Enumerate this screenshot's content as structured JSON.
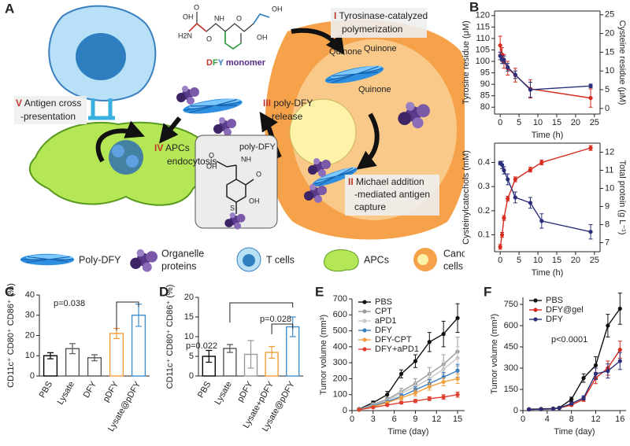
{
  "schematic": {
    "panel": "A",
    "steps": [
      {
        "numeral": "I",
        "lines": [
          "Tyrosinase-catalyzed",
          "polymerization"
        ]
      },
      {
        "numeral": "II",
        "lines": [
          "Michael addition",
          "-mediated antigen",
          "capture"
        ]
      },
      {
        "numeral": "III",
        "lines": [
          "poly-DFY",
          "release"
        ]
      },
      {
        "numeral": "IV",
        "lines": [
          "APCs",
          "endocytosis"
        ]
      },
      {
        "numeral": "V",
        "lines": [
          "Antigen cross",
          "-presentation"
        ]
      }
    ],
    "monomer": [
      "D",
      "F",
      "Y",
      " monomer"
    ],
    "monomer_atoms": [
      "O",
      "OH",
      "H2N",
      "O",
      "NH",
      "O",
      "OH",
      "OH"
    ],
    "quinone": [
      "Quinone",
      "Quinone",
      "Quinone"
    ],
    "structure_label": "poly-DFY",
    "structure_atoms": [
      "O",
      "OH",
      "NH",
      "O",
      "OH",
      "S"
    ],
    "legend": [
      [
        "Poly-DFY"
      ],
      [
        "Organelle",
        "proteins"
      ],
      [
        "T cells"
      ],
      [
        "APCs"
      ],
      [
        "Cancer",
        "cells"
      ]
    ]
  },
  "chart_data": [
    {
      "panel": "B",
      "type": "line",
      "xlabel": "Time (h)",
      "ylabel": "Tyrosine residue (μM)",
      "y2label": "Cysteine residue (μM)",
      "x": [
        0,
        0.5,
        1,
        2,
        4,
        8,
        24
      ],
      "xlim": [
        -1.5,
        26.5
      ],
      "xticks": [
        0,
        5,
        10,
        15,
        20,
        25
      ],
      "ylim": [
        77,
        122
      ],
      "yticks": [
        80,
        85,
        90,
        95,
        100,
        105,
        110,
        115,
        120
      ],
      "y2lim": [
        -1.5,
        26
      ],
      "y2ticks": [
        0,
        5,
        10,
        15,
        20,
        25
      ],
      "series": [
        {
          "color": "#d62b1f",
          "values": [
            107,
            103,
            100,
            97,
            94,
            88,
            84
          ],
          "errors": [
            4,
            3,
            3,
            3,
            3,
            4,
            4
          ]
        },
        {
          "color": "#2b2f7a",
          "axis": "y2",
          "values": [
            14,
            13,
            13,
            11,
            9,
            5,
            6
          ],
          "errors": [
            1,
            1,
            1,
            1,
            1,
            2,
            0.5
          ]
        }
      ]
    },
    {
      "type": "line",
      "xlabel": "Time (h)",
      "ylabel": "Cysteinylcatechols (mM)",
      "y2label": "Total protein (g L⁻¹)",
      "x": [
        0,
        0.5,
        1,
        2,
        4,
        8,
        11,
        24
      ],
      "xlim": [
        -1.5,
        26.5
      ],
      "xticks": [
        0,
        5,
        10,
        15,
        20,
        25
      ],
      "ylim": [
        0.03,
        0.48
      ],
      "yticks": [
        0.1,
        0.2,
        0.3,
        0.4
      ],
      "y2lim": [
        6.5,
        12.5
      ],
      "y2ticks": [
        7,
        8,
        9,
        10,
        11,
        12
      ],
      "series": [
        {
          "color": "#d62b1f",
          "values": [
            0.05,
            0.1,
            0.17,
            0.25,
            0.33,
            0.37,
            0.4,
            0.46
          ],
          "errors": [
            0.01,
            0.01,
            0.01,
            0.01,
            0.01,
            0.01,
            0.01,
            0.01
          ]
        },
        {
          "color": "#2b2f7a",
          "axis": "y2",
          "values": [
            11.4,
            11.3,
            11.0,
            10.5,
            9.5,
            9.2,
            8.2,
            7.6
          ],
          "errors": [
            0.1,
            0.2,
            0.2,
            0.3,
            0.3,
            0.3,
            0.4,
            0.4
          ]
        }
      ]
    },
    {
      "panel": "C",
      "type": "bar",
      "ylabel": "CD11c⁺ CD80⁺ CD86⁺ (%)",
      "categories": [
        "PBS",
        "Lysate",
        "DFY",
        "pDFY",
        "Lysate@pDFY"
      ],
      "values": [
        10,
        13.5,
        9,
        21,
        30
      ],
      "errors": [
        1.5,
        2.5,
        1.5,
        2.5,
        5.5
      ],
      "colors": [
        "#000000",
        "#555555",
        "#555555",
        "#f39c35",
        "#3f8fd0"
      ],
      "ylim": [
        0,
        40
      ],
      "yticks": [
        0,
        10,
        20,
        30,
        40
      ],
      "annotations": [
        "p=0.038"
      ]
    },
    {
      "panel": "D",
      "type": "bar",
      "ylabel": "CD11c⁺ CD80⁺ CD86⁺ (%)",
      "categories": [
        "PBS",
        "Lysate",
        "pDFY",
        "Lysate+pDFY",
        "Lysate@pDFY"
      ],
      "values": [
        5,
        7,
        5.5,
        6,
        12.5
      ],
      "errors": [
        1.5,
        1,
        3.5,
        1.5,
        2.5
      ],
      "colors": [
        "#000000",
        "#555555",
        "#999999",
        "#f39c35",
        "#3f8fd0"
      ],
      "ylim": [
        0,
        20
      ],
      "yticks": [
        0,
        5,
        10,
        15,
        20
      ],
      "annotations": [
        "p=0.022",
        "p=0.028"
      ]
    },
    {
      "panel": "E",
      "type": "line",
      "xlabel": "Time (day)",
      "ylabel": "Tumor volume (mm³)",
      "x": [
        1,
        3,
        5,
        7,
        9,
        11,
        13,
        15
      ],
      "xlim": [
        0,
        16
      ],
      "xticks": [
        0,
        3,
        6,
        9,
        12,
        15
      ],
      "ylim": [
        0,
        700
      ],
      "yticks": [
        0,
        100,
        200,
        300,
        400,
        500,
        600,
        700
      ],
      "series": [
        {
          "name": "PBS",
          "color": "#111111",
          "values": [
            10,
            50,
            100,
            230,
            310,
            430,
            480,
            580
          ],
          "errors": [
            5,
            10,
            20,
            25,
            40,
            60,
            80,
            90
          ]
        },
        {
          "name": "CPT",
          "color": "#9a9a9a",
          "values": [
            8,
            40,
            70,
            120,
            170,
            230,
            290,
            370
          ],
          "errors": [
            4,
            8,
            12,
            20,
            30,
            40,
            60,
            90
          ]
        },
        {
          "name": "aPD1",
          "color": "#c8c8c8",
          "values": [
            8,
            35,
            60,
            110,
            150,
            200,
            260,
            330
          ],
          "errors": [
            4,
            8,
            10,
            18,
            25,
            35,
            50,
            70
          ]
        },
        {
          "name": "DFY",
          "color": "#3a7fc0",
          "values": [
            8,
            30,
            55,
            90,
            130,
            170,
            210,
            250
          ],
          "errors": [
            3,
            6,
            10,
            15,
            20,
            25,
            30,
            40
          ]
        },
        {
          "name": "DFY-CPT",
          "color": "#f0a040",
          "values": [
            6,
            25,
            50,
            80,
            110,
            150,
            180,
            200
          ],
          "errors": [
            3,
            5,
            8,
            12,
            18,
            22,
            25,
            30
          ]
        },
        {
          "name": "DFY+aPD1",
          "color": "#e04030",
          "values": [
            5,
            20,
            35,
            50,
            60,
            75,
            85,
            100
          ],
          "errors": [
            2,
            4,
            6,
            8,
            10,
            12,
            14,
            16
          ]
        }
      ]
    },
    {
      "panel": "F",
      "type": "line",
      "xlabel": "Time (day)",
      "ylabel": "Tumor volume (mm³)",
      "x": [
        1,
        3,
        5,
        6,
        8,
        10,
        12,
        14,
        16
      ],
      "xlim": [
        0,
        17
      ],
      "xticks": [
        0,
        4,
        8,
        12,
        16
      ],
      "ylim": [
        0,
        800
      ],
      "yticks": [
        0,
        150,
        300,
        450,
        600,
        750
      ],
      "series": [
        {
          "name": "PBS",
          "color": "#111111",
          "values": [
            10,
            12,
            15,
            20,
            80,
            230,
            320,
            600,
            720
          ],
          "errors": [
            3,
            3,
            3,
            5,
            15,
            30,
            60,
            80,
            110
          ]
        },
        {
          "name": "DFY@gel",
          "color": "#d62b1f",
          "values": [
            8,
            10,
            12,
            18,
            40,
            80,
            230,
            300,
            430
          ],
          "errors": [
            3,
            3,
            3,
            4,
            8,
            15,
            40,
            50,
            60
          ]
        },
        {
          "name": "DFY",
          "color": "#2b2f7a",
          "values": [
            8,
            10,
            12,
            18,
            50,
            90,
            260,
            280,
            350
          ],
          "errors": [
            3,
            3,
            3,
            4,
            10,
            15,
            40,
            50,
            60
          ]
        }
      ],
      "annotations": [
        "p<0.0001"
      ]
    }
  ]
}
